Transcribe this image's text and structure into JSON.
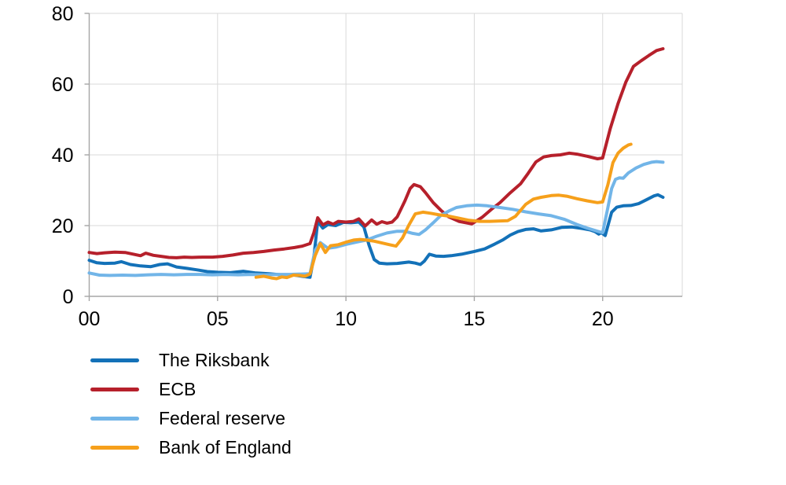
{
  "chart_data": {
    "type": "line",
    "title": "",
    "xlabel": "",
    "ylabel": "",
    "xlim": [
      0,
      23.1
    ],
    "ylim": [
      0,
      80
    ],
    "grid": true,
    "legend_position": "bottom-left",
    "grid_color": "#d9d9d9",
    "axis_color": "#a6a6a6",
    "text_color": "#000000",
    "xticks": {
      "values": [
        0,
        5,
        10,
        15,
        20
      ],
      "labels": [
        "00",
        "05",
        "10",
        "15",
        "20"
      ]
    },
    "yticks": {
      "values": [
        0,
        20,
        40,
        60,
        80
      ],
      "labels": [
        "0",
        "20",
        "40",
        "60",
        "80"
      ]
    },
    "series": [
      {
        "name": "The Riksbank",
        "color": "#1371b8",
        "points": [
          [
            0,
            10.2
          ],
          [
            0.3,
            9.5
          ],
          [
            0.6,
            9.3
          ],
          [
            1.0,
            9.4
          ],
          [
            1.25,
            9.8
          ],
          [
            1.6,
            9.0
          ],
          [
            2.0,
            8.6
          ],
          [
            2.4,
            8.4
          ],
          [
            2.75,
            9.0
          ],
          [
            3.05,
            9.2
          ],
          [
            3.4,
            8.3
          ],
          [
            3.8,
            7.9
          ],
          [
            4.2,
            7.5
          ],
          [
            4.6,
            7.0
          ],
          [
            5.0,
            6.8
          ],
          [
            5.5,
            6.7
          ],
          [
            6.0,
            7.1
          ],
          [
            6.5,
            6.6
          ],
          [
            7.0,
            6.4
          ],
          [
            7.5,
            6.1
          ],
          [
            8.0,
            6.0
          ],
          [
            8.35,
            5.6
          ],
          [
            8.6,
            5.4
          ],
          [
            8.75,
            11.0
          ],
          [
            8.9,
            21.2
          ],
          [
            9.1,
            19.3
          ],
          [
            9.3,
            20.3
          ],
          [
            9.6,
            20.0
          ],
          [
            9.9,
            20.9
          ],
          [
            10.2,
            20.8
          ],
          [
            10.5,
            21.0
          ],
          [
            10.7,
            19.6
          ],
          [
            10.9,
            14.5
          ],
          [
            11.1,
            10.4
          ],
          [
            11.3,
            9.4
          ],
          [
            11.6,
            9.2
          ],
          [
            12.0,
            9.3
          ],
          [
            12.45,
            9.7
          ],
          [
            12.7,
            9.4
          ],
          [
            12.9,
            9.0
          ],
          [
            13.05,
            9.9
          ],
          [
            13.25,
            11.9
          ],
          [
            13.5,
            11.4
          ],
          [
            13.8,
            11.3
          ],
          [
            14.1,
            11.5
          ],
          [
            14.5,
            11.9
          ],
          [
            15.0,
            12.7
          ],
          [
            15.4,
            13.4
          ],
          [
            15.8,
            14.8
          ],
          [
            16.1,
            15.9
          ],
          [
            16.4,
            17.3
          ],
          [
            16.7,
            18.3
          ],
          [
            17.0,
            18.9
          ],
          [
            17.3,
            19.1
          ],
          [
            17.6,
            18.5
          ],
          [
            18.0,
            18.8
          ],
          [
            18.4,
            19.5
          ],
          [
            18.8,
            19.6
          ],
          [
            19.2,
            19.2
          ],
          [
            19.5,
            18.8
          ],
          [
            19.7,
            18.3
          ],
          [
            19.85,
            17.6
          ],
          [
            19.95,
            18.0
          ],
          [
            20.1,
            17.2
          ],
          [
            20.35,
            23.8
          ],
          [
            20.55,
            25.2
          ],
          [
            20.8,
            25.6
          ],
          [
            21.1,
            25.7
          ],
          [
            21.4,
            26.2
          ],
          [
            21.7,
            27.3
          ],
          [
            22.0,
            28.4
          ],
          [
            22.15,
            28.7
          ],
          [
            22.35,
            28.0
          ]
        ]
      },
      {
        "name": "ECB",
        "color": "#b6202b",
        "points": [
          [
            0,
            12.4
          ],
          [
            0.3,
            12.1
          ],
          [
            0.6,
            12.3
          ],
          [
            1.0,
            12.5
          ],
          [
            1.4,
            12.4
          ],
          [
            1.8,
            11.8
          ],
          [
            2.0,
            11.5
          ],
          [
            2.2,
            12.2
          ],
          [
            2.5,
            11.6
          ],
          [
            2.8,
            11.3
          ],
          [
            3.1,
            11.0
          ],
          [
            3.4,
            10.9
          ],
          [
            3.7,
            11.1
          ],
          [
            4.0,
            11.0
          ],
          [
            4.4,
            11.1
          ],
          [
            4.8,
            11.1
          ],
          [
            5.2,
            11.3
          ],
          [
            5.6,
            11.7
          ],
          [
            6.0,
            12.2
          ],
          [
            6.4,
            12.4
          ],
          [
            6.8,
            12.7
          ],
          [
            7.2,
            13.1
          ],
          [
            7.6,
            13.4
          ],
          [
            8.0,
            13.8
          ],
          [
            8.3,
            14.2
          ],
          [
            8.6,
            14.9
          ],
          [
            8.75,
            18.0
          ],
          [
            8.9,
            22.2
          ],
          [
            9.1,
            20.2
          ],
          [
            9.3,
            21.0
          ],
          [
            9.5,
            20.4
          ],
          [
            9.7,
            21.2
          ],
          [
            10.0,
            21.0
          ],
          [
            10.3,
            21.2
          ],
          [
            10.5,
            21.9
          ],
          [
            10.75,
            19.9
          ],
          [
            11.0,
            21.6
          ],
          [
            11.2,
            20.4
          ],
          [
            11.4,
            21.1
          ],
          [
            11.6,
            20.7
          ],
          [
            11.8,
            21.0
          ],
          [
            12.0,
            22.5
          ],
          [
            12.3,
            27.0
          ],
          [
            12.5,
            30.5
          ],
          [
            12.65,
            31.6
          ],
          [
            12.9,
            31.0
          ],
          [
            13.1,
            29.3
          ],
          [
            13.4,
            26.5
          ],
          [
            13.7,
            24.3
          ],
          [
            14.0,
            22.5
          ],
          [
            14.4,
            21.2
          ],
          [
            14.9,
            20.5
          ],
          [
            15.3,
            22.3
          ],
          [
            15.7,
            24.8
          ],
          [
            16.0,
            26.5
          ],
          [
            16.4,
            29.3
          ],
          [
            16.8,
            31.8
          ],
          [
            17.1,
            34.8
          ],
          [
            17.4,
            38.0
          ],
          [
            17.7,
            39.4
          ],
          [
            18.0,
            39.8
          ],
          [
            18.35,
            40.0
          ],
          [
            18.7,
            40.5
          ],
          [
            19.0,
            40.2
          ],
          [
            19.4,
            39.6
          ],
          [
            19.8,
            38.9
          ],
          [
            20.0,
            39.1
          ],
          [
            20.3,
            47.5
          ],
          [
            20.6,
            54.5
          ],
          [
            20.9,
            60.5
          ],
          [
            21.2,
            65.0
          ],
          [
            21.5,
            66.6
          ],
          [
            21.8,
            68.1
          ],
          [
            22.1,
            69.5
          ],
          [
            22.35,
            70.0
          ]
        ]
      },
      {
        "name": "Federal reserve",
        "color": "#72b5e8",
        "points": [
          [
            0,
            6.6
          ],
          [
            0.4,
            6.0
          ],
          [
            0.8,
            5.9
          ],
          [
            1.3,
            6.0
          ],
          [
            1.8,
            5.9
          ],
          [
            2.3,
            6.1
          ],
          [
            2.8,
            6.2
          ],
          [
            3.3,
            6.1
          ],
          [
            3.8,
            6.2
          ],
          [
            4.3,
            6.2
          ],
          [
            4.8,
            6.1
          ],
          [
            5.3,
            6.2
          ],
          [
            5.8,
            6.1
          ],
          [
            6.3,
            6.2
          ],
          [
            6.8,
            6.1
          ],
          [
            7.3,
            6.2
          ],
          [
            7.8,
            6.2
          ],
          [
            8.3,
            6.3
          ],
          [
            8.6,
            6.4
          ],
          [
            8.8,
            13.0
          ],
          [
            9.0,
            15.2
          ],
          [
            9.3,
            13.6
          ],
          [
            9.6,
            13.9
          ],
          [
            10.0,
            14.7
          ],
          [
            10.4,
            15.3
          ],
          [
            10.8,
            15.9
          ],
          [
            11.2,
            17.0
          ],
          [
            11.6,
            17.9
          ],
          [
            12.0,
            18.4
          ],
          [
            12.3,
            18.4
          ],
          [
            12.6,
            17.8
          ],
          [
            12.85,
            17.5
          ],
          [
            13.1,
            18.8
          ],
          [
            13.4,
            20.8
          ],
          [
            13.7,
            22.9
          ],
          [
            14.0,
            24.1
          ],
          [
            14.3,
            25.1
          ],
          [
            14.7,
            25.6
          ],
          [
            15.1,
            25.8
          ],
          [
            15.5,
            25.6
          ],
          [
            16.0,
            25.1
          ],
          [
            16.5,
            24.6
          ],
          [
            17.0,
            23.9
          ],
          [
            17.5,
            23.3
          ],
          [
            18.0,
            22.8
          ],
          [
            18.5,
            21.8
          ],
          [
            19.0,
            20.3
          ],
          [
            19.4,
            19.3
          ],
          [
            19.8,
            18.4
          ],
          [
            20.0,
            18.0
          ],
          [
            20.2,
            25.0
          ],
          [
            20.35,
            30.5
          ],
          [
            20.5,
            33.1
          ],
          [
            20.65,
            33.5
          ],
          [
            20.8,
            33.4
          ],
          [
            21.0,
            34.9
          ],
          [
            21.3,
            36.3
          ],
          [
            21.6,
            37.3
          ],
          [
            21.9,
            37.9
          ],
          [
            22.1,
            38.1
          ],
          [
            22.35,
            37.9
          ]
        ]
      },
      {
        "name": "Bank of England",
        "color": "#f6a01b",
        "points": [
          [
            6.5,
            5.4
          ],
          [
            6.8,
            5.7
          ],
          [
            7.1,
            5.2
          ],
          [
            7.3,
            5.0
          ],
          [
            7.5,
            5.5
          ],
          [
            7.7,
            5.3
          ],
          [
            7.95,
            6.0
          ],
          [
            8.2,
            5.9
          ],
          [
            8.4,
            5.7
          ],
          [
            8.6,
            6.3
          ],
          [
            8.8,
            11.5
          ],
          [
            9.0,
            14.9
          ],
          [
            9.2,
            12.4
          ],
          [
            9.4,
            14.3
          ],
          [
            9.7,
            14.6
          ],
          [
            10.0,
            15.3
          ],
          [
            10.3,
            15.9
          ],
          [
            10.55,
            16.1
          ],
          [
            10.8,
            15.9
          ],
          [
            11.1,
            15.6
          ],
          [
            11.4,
            15.1
          ],
          [
            11.7,
            14.6
          ],
          [
            11.95,
            14.2
          ],
          [
            12.2,
            16.5
          ],
          [
            12.45,
            20.1
          ],
          [
            12.7,
            23.3
          ],
          [
            13.0,
            23.8
          ],
          [
            13.3,
            23.5
          ],
          [
            13.6,
            23.1
          ],
          [
            14.0,
            22.7
          ],
          [
            14.4,
            22.1
          ],
          [
            14.8,
            21.5
          ],
          [
            15.2,
            21.2
          ],
          [
            15.6,
            21.2
          ],
          [
            16.0,
            21.3
          ],
          [
            16.3,
            21.4
          ],
          [
            16.6,
            22.6
          ],
          [
            17.0,
            26.0
          ],
          [
            17.3,
            27.5
          ],
          [
            17.6,
            28.0
          ],
          [
            18.0,
            28.5
          ],
          [
            18.3,
            28.6
          ],
          [
            18.6,
            28.3
          ],
          [
            19.0,
            27.6
          ],
          [
            19.4,
            27.0
          ],
          [
            19.8,
            26.5
          ],
          [
            20.0,
            26.7
          ],
          [
            20.2,
            31.5
          ],
          [
            20.4,
            37.8
          ],
          [
            20.6,
            40.5
          ],
          [
            20.8,
            41.9
          ],
          [
            21.0,
            42.8
          ],
          [
            21.1,
            43.0
          ]
        ]
      }
    ]
  }
}
